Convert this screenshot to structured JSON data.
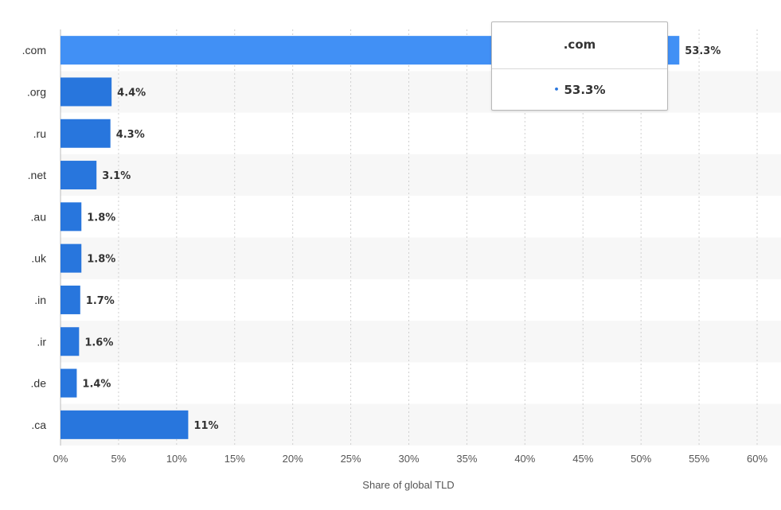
{
  "chart_data": {
    "type": "bar",
    "orientation": "horizontal",
    "categories": [
      ".com",
      ".org",
      ".ru",
      ".net",
      ".au",
      ".uk",
      ".in",
      ".ir",
      ".de",
      ".ca"
    ],
    "values": [
      53.3,
      4.4,
      4.3,
      3.1,
      1.8,
      1.8,
      1.7,
      1.6,
      1.4,
      11
    ],
    "data_labels": [
      "53.3%",
      "4.4%",
      "4.3%",
      "3.1%",
      "1.8%",
      "1.8%",
      "1.7%",
      "1.6%",
      "1.4%",
      "11%"
    ],
    "xlabel": "Share of global TLD",
    "xlim": [
      0,
      60
    ],
    "xticks": [
      0,
      5,
      10,
      15,
      20,
      25,
      30,
      35,
      40,
      45,
      50,
      55,
      60
    ],
    "xtick_labels": [
      "0%",
      "5%",
      "10%",
      "15%",
      "20%",
      "25%",
      "30%",
      "35%",
      "40%",
      "45%",
      "50%",
      "55%",
      "60%"
    ],
    "grid": "vertical dotted",
    "highlighted_index": 0,
    "colors": {
      "bar": "#2876dd",
      "bar_highlight": "#4190f5",
      "band": "#f7f7f7",
      "grid": "#cfcfcf"
    }
  },
  "tooltip": {
    "title": ".com",
    "bullet": "•",
    "value": "53.3%"
  }
}
